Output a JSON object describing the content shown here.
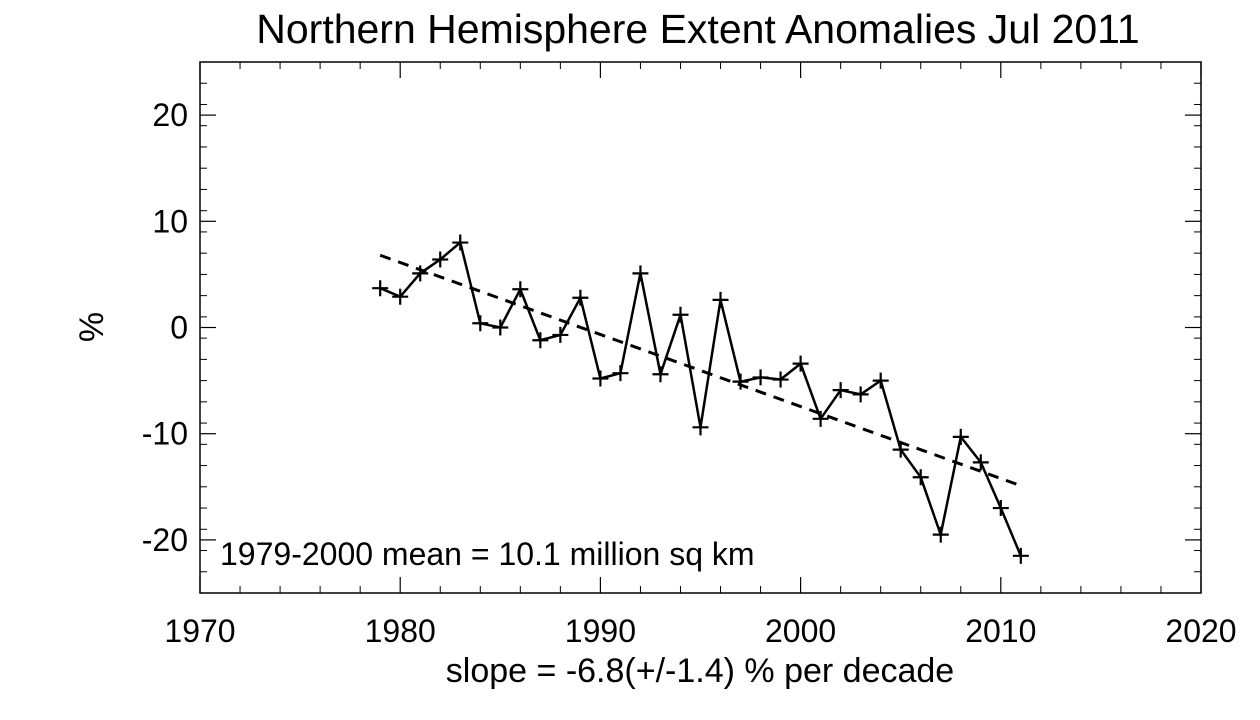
{
  "chart_data": {
    "type": "line",
    "title": "Northern Hemisphere Extent Anomalies Jul 2011",
    "xlabel": "slope =  -6.8(+/-1.4) % per decade",
    "ylabel": "%",
    "xlim": [
      1970,
      2020
    ],
    "ylim": [
      -25,
      25
    ],
    "xticks": [
      1970,
      1980,
      1990,
      2000,
      2010,
      2020
    ],
    "yticks": [
      -20,
      -10,
      0,
      10,
      20
    ],
    "grid": false,
    "annotation": "1979-2000 mean =  10.1 million sq km",
    "series": [
      {
        "style": "solid-with-plus-markers",
        "x": [
          1979,
          1980,
          1981,
          1982,
          1983,
          1984,
          1985,
          1986,
          1987,
          1988,
          1989,
          1990,
          1991,
          1992,
          1993,
          1994,
          1995,
          1996,
          1997,
          1998,
          1999,
          2000,
          2001,
          2002,
          2003,
          2004,
          2005,
          2006,
          2007,
          2008,
          2009,
          2010,
          2011
        ],
        "values": [
          3.7,
          2.9,
          5.1,
          6.4,
          8.0,
          0.4,
          0.0,
          3.6,
          -1.2,
          -0.7,
          2.8,
          -4.8,
          -4.3,
          5.1,
          -4.4,
          1.2,
          -9.4,
          2.6,
          -5.1,
          -4.7,
          -4.9,
          -3.4,
          -8.6,
          -5.9,
          -6.3,
          -5.0,
          -11.5,
          -14.1,
          -19.5,
          -10.3,
          -12.7,
          -17.0,
          -21.5
        ]
      },
      {
        "style": "dashed-trend",
        "x": [
          1979,
          2011
        ],
        "values": [
          6.8,
          -14.9
        ]
      }
    ]
  }
}
